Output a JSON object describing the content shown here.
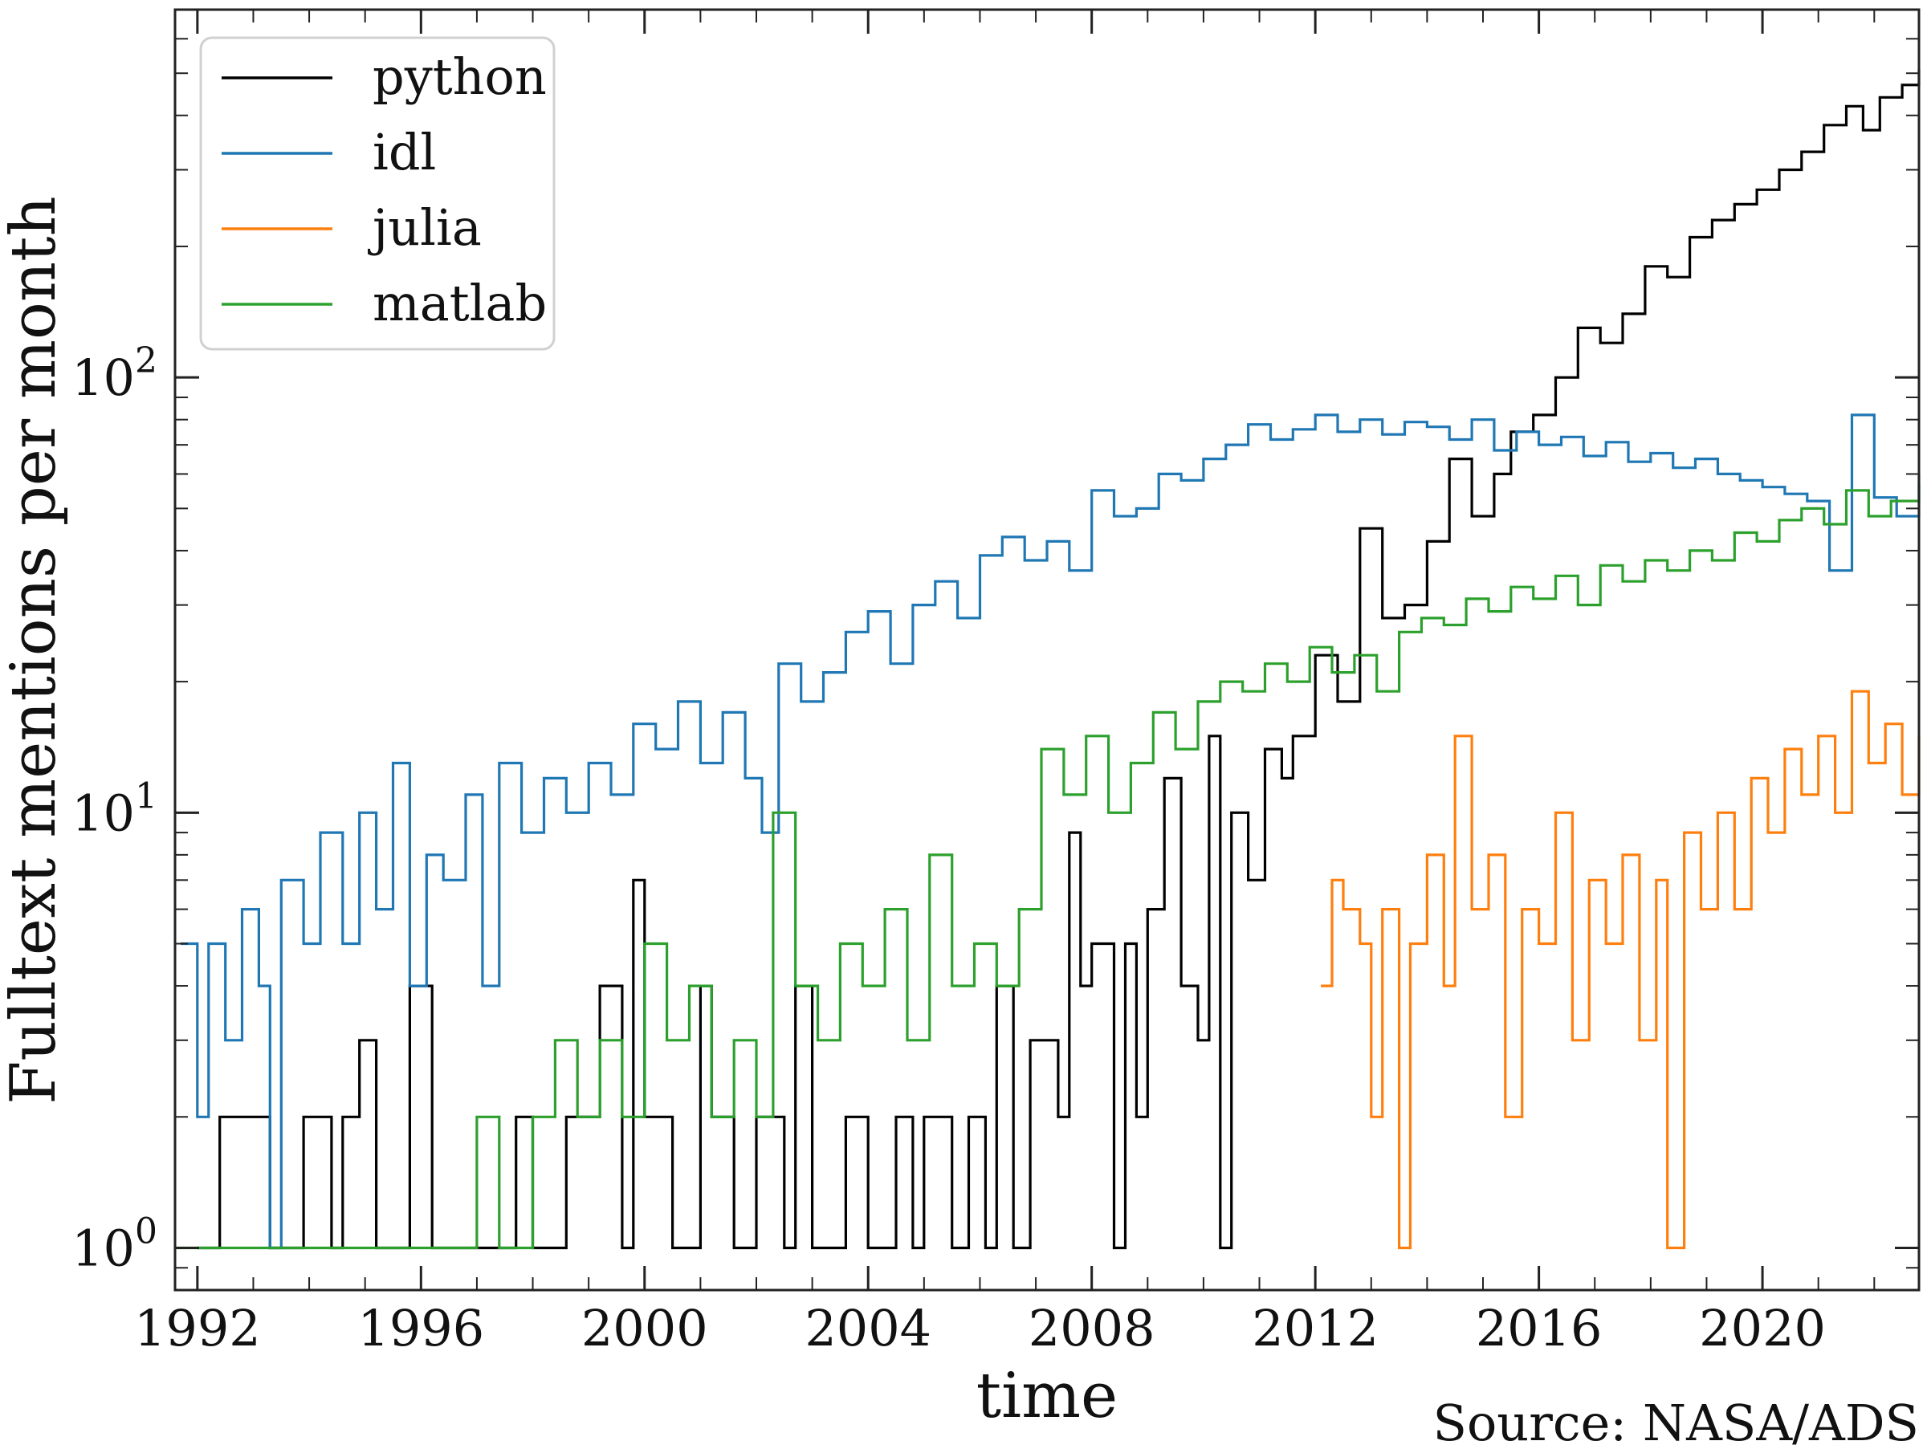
{
  "chart_data": {
    "type": "line",
    "step": true,
    "title": "",
    "xlabel": "time",
    "ylabel": "Fulltext mentions per month",
    "source": "Source: NASA/ADS",
    "xlim": [
      1991.6,
      2022.8
    ],
    "ylim": [
      0.8,
      700
    ],
    "yscale": "log",
    "grid": false,
    "legend_position": "top-left",
    "x_ticks": [
      1992,
      1996,
      2000,
      2004,
      2008,
      2012,
      2016,
      2020
    ],
    "x_tick_labels": [
      "1992",
      "1996",
      "2000",
      "2004",
      "2008",
      "2012",
      "2016",
      "2020"
    ],
    "y_ticks": [
      1,
      10,
      100
    ],
    "y_tick_labels": [
      {
        "base": "10",
        "exp": "0"
      },
      {
        "base": "10",
        "exp": "1"
      },
      {
        "base": "10",
        "exp": "2"
      }
    ],
    "series": [
      {
        "name": "python",
        "color": "#000000",
        "points": [
          [
            1992.0,
            1
          ],
          [
            1992.4,
            2
          ],
          [
            1993.3,
            1
          ],
          [
            1993.9,
            2
          ],
          [
            1994.4,
            1
          ],
          [
            1994.6,
            2
          ],
          [
            1994.9,
            3
          ],
          [
            1995.2,
            1
          ],
          [
            1995.8,
            4
          ],
          [
            1996.2,
            1
          ],
          [
            1997.7,
            2
          ],
          [
            1998.0,
            1
          ],
          [
            1998.6,
            2
          ],
          [
            1999.2,
            4
          ],
          [
            1999.6,
            1
          ],
          [
            1999.8,
            7
          ],
          [
            2000.0,
            2
          ],
          [
            2000.5,
            1
          ],
          [
            2001.0,
            4
          ],
          [
            2001.2,
            2
          ],
          [
            2001.6,
            1
          ],
          [
            2002.0,
            2
          ],
          [
            2002.5,
            1
          ],
          [
            2002.7,
            4
          ],
          [
            2003.0,
            1
          ],
          [
            2003.6,
            2
          ],
          [
            2004.0,
            1
          ],
          [
            2004.5,
            2
          ],
          [
            2004.8,
            1
          ],
          [
            2005.0,
            2
          ],
          [
            2005.5,
            1
          ],
          [
            2005.8,
            2
          ],
          [
            2006.1,
            1
          ],
          [
            2006.3,
            4
          ],
          [
            2006.6,
            1
          ],
          [
            2006.9,
            3
          ],
          [
            2007.4,
            2
          ],
          [
            2007.6,
            9
          ],
          [
            2007.8,
            4
          ],
          [
            2008.0,
            5
          ],
          [
            2008.4,
            1
          ],
          [
            2008.6,
            5
          ],
          [
            2008.8,
            2
          ],
          [
            2009.0,
            6
          ],
          [
            2009.3,
            12
          ],
          [
            2009.6,
            4
          ],
          [
            2009.9,
            3
          ],
          [
            2010.1,
            15
          ],
          [
            2010.3,
            1
          ],
          [
            2010.5,
            10
          ],
          [
            2010.8,
            7
          ],
          [
            2011.1,
            14
          ],
          [
            2011.4,
            12
          ],
          [
            2011.6,
            15
          ],
          [
            2012.0,
            23
          ],
          [
            2012.4,
            18
          ],
          [
            2012.8,
            45
          ],
          [
            2013.2,
            28
          ],
          [
            2013.6,
            30
          ],
          [
            2014.0,
            42
          ],
          [
            2014.4,
            65
          ],
          [
            2014.8,
            48
          ],
          [
            2015.2,
            60
          ],
          [
            2015.5,
            75
          ],
          [
            2015.9,
            82
          ],
          [
            2016.3,
            100
          ],
          [
            2016.7,
            130
          ],
          [
            2017.1,
            120
          ],
          [
            2017.5,
            140
          ],
          [
            2017.9,
            180
          ],
          [
            2018.3,
            170
          ],
          [
            2018.7,
            210
          ],
          [
            2019.1,
            230
          ],
          [
            2019.5,
            250
          ],
          [
            2019.9,
            270
          ],
          [
            2020.3,
            300
          ],
          [
            2020.7,
            330
          ],
          [
            2021.1,
            380
          ],
          [
            2021.5,
            420
          ],
          [
            2021.8,
            370
          ],
          [
            2022.1,
            440
          ],
          [
            2022.5,
            470
          ],
          [
            2022.8,
            510
          ]
        ]
      },
      {
        "name": "idl",
        "color": "#1f77b4",
        "points": [
          [
            1991.7,
            5
          ],
          [
            1992.0,
            2
          ],
          [
            1992.2,
            5
          ],
          [
            1992.5,
            3
          ],
          [
            1992.8,
            6
          ],
          [
            1993.1,
            4
          ],
          [
            1993.3,
            1
          ],
          [
            1993.5,
            7
          ],
          [
            1993.9,
            5
          ],
          [
            1994.2,
            9
          ],
          [
            1994.6,
            5
          ],
          [
            1994.9,
            10
          ],
          [
            1995.2,
            6
          ],
          [
            1995.5,
            13
          ],
          [
            1995.8,
            4
          ],
          [
            1996.1,
            8
          ],
          [
            1996.4,
            7
          ],
          [
            1996.8,
            11
          ],
          [
            1997.1,
            4
          ],
          [
            1997.4,
            13
          ],
          [
            1997.8,
            9
          ],
          [
            1998.2,
            12
          ],
          [
            1998.6,
            10
          ],
          [
            1999.0,
            13
          ],
          [
            1999.4,
            11
          ],
          [
            1999.8,
            16
          ],
          [
            2000.2,
            14
          ],
          [
            2000.6,
            18
          ],
          [
            2001.0,
            13
          ],
          [
            2001.4,
            17
          ],
          [
            2001.8,
            12
          ],
          [
            2002.1,
            9
          ],
          [
            2002.4,
            22
          ],
          [
            2002.8,
            18
          ],
          [
            2003.2,
            21
          ],
          [
            2003.6,
            26
          ],
          [
            2004.0,
            29
          ],
          [
            2004.4,
            22
          ],
          [
            2004.8,
            30
          ],
          [
            2005.2,
            34
          ],
          [
            2005.6,
            28
          ],
          [
            2006.0,
            39
          ],
          [
            2006.4,
            43
          ],
          [
            2006.8,
            38
          ],
          [
            2007.2,
            42
          ],
          [
            2007.6,
            36
          ],
          [
            2008.0,
            55
          ],
          [
            2008.4,
            48
          ],
          [
            2008.8,
            50
          ],
          [
            2009.2,
            60
          ],
          [
            2009.6,
            58
          ],
          [
            2010.0,
            65
          ],
          [
            2010.4,
            70
          ],
          [
            2010.8,
            78
          ],
          [
            2011.2,
            72
          ],
          [
            2011.6,
            76
          ],
          [
            2012.0,
            82
          ],
          [
            2012.4,
            75
          ],
          [
            2012.8,
            80
          ],
          [
            2013.2,
            74
          ],
          [
            2013.6,
            79
          ],
          [
            2014.0,
            77
          ],
          [
            2014.4,
            72
          ],
          [
            2014.8,
            80
          ],
          [
            2015.2,
            68
          ],
          [
            2015.6,
            75
          ],
          [
            2016.0,
            70
          ],
          [
            2016.4,
            73
          ],
          [
            2016.8,
            66
          ],
          [
            2017.2,
            71
          ],
          [
            2017.6,
            64
          ],
          [
            2018.0,
            67
          ],
          [
            2018.4,
            62
          ],
          [
            2018.8,
            65
          ],
          [
            2019.2,
            60
          ],
          [
            2019.6,
            58
          ],
          [
            2020.0,
            56
          ],
          [
            2020.4,
            54
          ],
          [
            2020.8,
            52
          ],
          [
            2021.2,
            36
          ],
          [
            2021.6,
            82
          ],
          [
            2022.0,
            53
          ],
          [
            2022.4,
            48
          ],
          [
            2022.8,
            60
          ]
        ]
      },
      {
        "name": "julia",
        "color": "#ff7f0e",
        "points": [
          [
            2012.1,
            4
          ],
          [
            2012.3,
            7
          ],
          [
            2012.5,
            6
          ],
          [
            2012.8,
            5
          ],
          [
            2013.0,
            2
          ],
          [
            2013.2,
            6
          ],
          [
            2013.5,
            1
          ],
          [
            2013.7,
            5
          ],
          [
            2014.0,
            8
          ],
          [
            2014.3,
            4
          ],
          [
            2014.5,
            15
          ],
          [
            2014.8,
            6
          ],
          [
            2015.1,
            8
          ],
          [
            2015.4,
            2
          ],
          [
            2015.7,
            6
          ],
          [
            2016.0,
            5
          ],
          [
            2016.3,
            10
          ],
          [
            2016.6,
            3
          ],
          [
            2016.9,
            7
          ],
          [
            2017.2,
            5
          ],
          [
            2017.5,
            8
          ],
          [
            2017.8,
            3
          ],
          [
            2018.1,
            7
          ],
          [
            2018.3,
            1
          ],
          [
            2018.6,
            9
          ],
          [
            2018.9,
            6
          ],
          [
            2019.2,
            10
          ],
          [
            2019.5,
            6
          ],
          [
            2019.8,
            12
          ],
          [
            2020.1,
            9
          ],
          [
            2020.4,
            14
          ],
          [
            2020.7,
            11
          ],
          [
            2021.0,
            15
          ],
          [
            2021.3,
            10
          ],
          [
            2021.6,
            19
          ],
          [
            2021.9,
            13
          ],
          [
            2022.2,
            16
          ],
          [
            2022.5,
            11
          ],
          [
            2022.8,
            15
          ]
        ]
      },
      {
        "name": "matlab",
        "color": "#2ca02c",
        "points": [
          [
            1991.6,
            1
          ],
          [
            1997.0,
            2
          ],
          [
            1997.4,
            1
          ],
          [
            1998.0,
            2
          ],
          [
            1998.4,
            3
          ],
          [
            1998.8,
            2
          ],
          [
            1999.2,
            3
          ],
          [
            1999.6,
            2
          ],
          [
            2000.0,
            5
          ],
          [
            2000.4,
            3
          ],
          [
            2000.8,
            4
          ],
          [
            2001.2,
            2
          ],
          [
            2001.6,
            3
          ],
          [
            2002.0,
            2
          ],
          [
            2002.3,
            10
          ],
          [
            2002.7,
            4
          ],
          [
            2003.1,
            3
          ],
          [
            2003.5,
            5
          ],
          [
            2003.9,
            4
          ],
          [
            2004.3,
            6
          ],
          [
            2004.7,
            3
          ],
          [
            2005.1,
            8
          ],
          [
            2005.5,
            4
          ],
          [
            2005.9,
            5
          ],
          [
            2006.3,
            4
          ],
          [
            2006.7,
            6
          ],
          [
            2007.1,
            14
          ],
          [
            2007.5,
            11
          ],
          [
            2007.9,
            15
          ],
          [
            2008.3,
            10
          ],
          [
            2008.7,
            13
          ],
          [
            2009.1,
            17
          ],
          [
            2009.5,
            14
          ],
          [
            2009.9,
            18
          ],
          [
            2010.3,
            20
          ],
          [
            2010.7,
            19
          ],
          [
            2011.1,
            22
          ],
          [
            2011.5,
            20
          ],
          [
            2011.9,
            24
          ],
          [
            2012.3,
            21
          ],
          [
            2012.7,
            23
          ],
          [
            2013.1,
            19
          ],
          [
            2013.5,
            26
          ],
          [
            2013.9,
            28
          ],
          [
            2014.3,
            27
          ],
          [
            2014.7,
            31
          ],
          [
            2015.1,
            29
          ],
          [
            2015.5,
            33
          ],
          [
            2015.9,
            31
          ],
          [
            2016.3,
            35
          ],
          [
            2016.7,
            30
          ],
          [
            2017.1,
            37
          ],
          [
            2017.5,
            34
          ],
          [
            2017.9,
            38
          ],
          [
            2018.3,
            36
          ],
          [
            2018.7,
            40
          ],
          [
            2019.1,
            38
          ],
          [
            2019.5,
            44
          ],
          [
            2019.9,
            42
          ],
          [
            2020.3,
            47
          ],
          [
            2020.7,
            50
          ],
          [
            2021.1,
            46
          ],
          [
            2021.5,
            55
          ],
          [
            2021.9,
            48
          ],
          [
            2022.3,
            52
          ],
          [
            2022.8,
            57
          ]
        ]
      }
    ]
  }
}
